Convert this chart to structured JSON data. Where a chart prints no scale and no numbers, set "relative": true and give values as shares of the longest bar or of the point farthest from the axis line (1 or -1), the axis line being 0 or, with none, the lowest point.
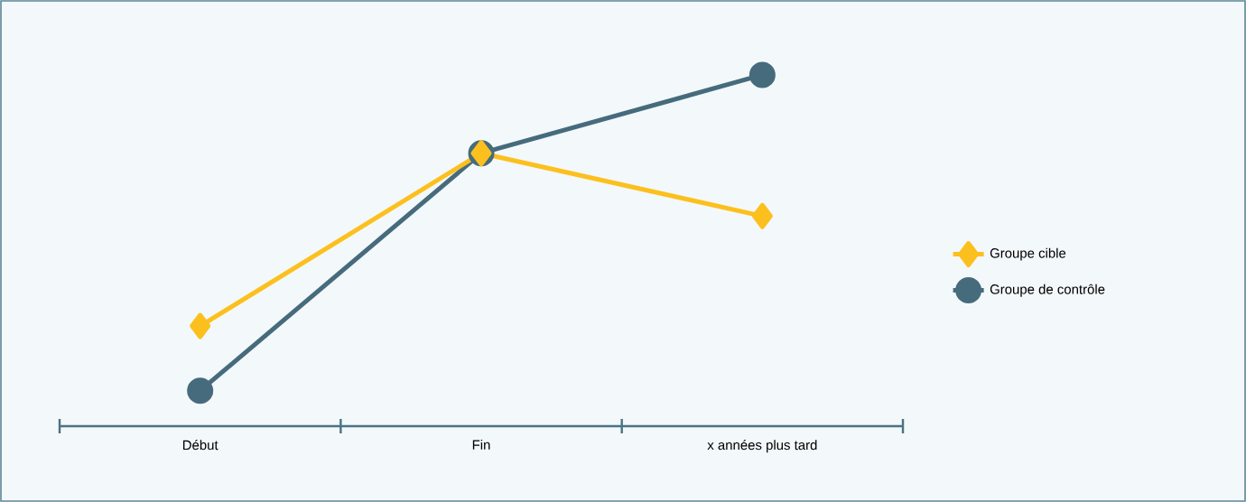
{
  "chart_data": {
    "type": "line",
    "relative": true,
    "categories": [
      "Début",
      "Fin",
      "x années plus tard"
    ],
    "series": [
      {
        "name": "Groupe cible",
        "color": "#fcc01e",
        "marker": "diamond",
        "values": [
          0.285,
          0.777,
          0.598
        ]
      },
      {
        "name": "Groupe de contrôle",
        "color": "#466b7d",
        "marker": "circle",
        "values": [
          0.101,
          0.777,
          1
        ]
      }
    ],
    "legend": "right",
    "line_style": "solid"
  }
}
